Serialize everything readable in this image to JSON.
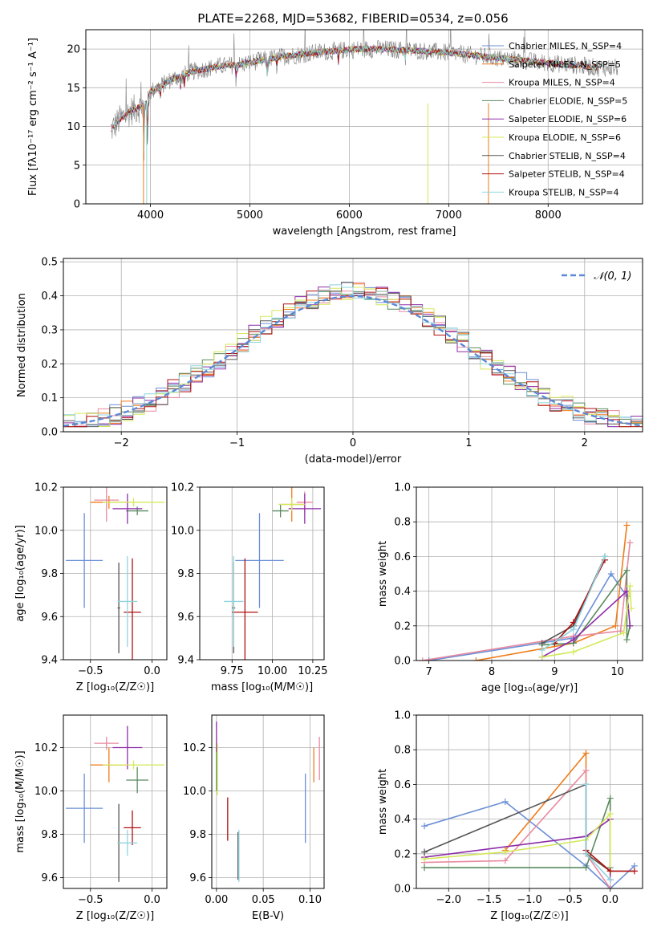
{
  "colors": {
    "chabrier_miles": "#6a8fd6",
    "salpeter_miles": "#f07c1b",
    "kroupa_miles": "#e88aa0",
    "chabrier_elodie": "#5a8a5f",
    "salpeter_elodie": "#8e2da8",
    "kroupa_elodie": "#d4e85a",
    "chabrier_stelib": "#555555",
    "salpeter_stelib": "#b01010",
    "kroupa_stelib": "#8fd4dd",
    "spectrum": "#808080",
    "normal": "#5b8ad6"
  },
  "chart_data": [
    {
      "type": "line",
      "title": "PLATE=2268, MJD=53682, FIBERID=0534, z=0.056",
      "xlabel": "wavelength [Angstrom, rest frame]",
      "ylabel": "Flux [fλ10⁻¹⁷ erg cm⁻² s⁻¹ A⁻¹]",
      "xlim": [
        3350,
        8950
      ],
      "ylim": [
        0,
        22.5
      ],
      "xticks": [
        4000,
        5000,
        6000,
        7000,
        8000
      ],
      "yticks": [
        0,
        5,
        10,
        15,
        20
      ],
      "legend_loc": "top-right",
      "legend": [
        "Chabrier MILES, N_SSP=4",
        "Salpeter MILES, N_SSP=5",
        "Kroupa MILES, N_SSP=4",
        "Chabrier ELODIE, N_SSP=5",
        "Salpeter ELODIE, N_SSP=6",
        "Kroupa ELODIE, N_SSP=6",
        "Chabrier STELIB, N_SSP=4",
        "Salpeter STELIB, N_SSP=4",
        "Kroupa STELIB, N_SSP=4"
      ],
      "continuum": {
        "x": [
          3600,
          3700,
          3800,
          3900,
          3950,
          4000,
          4100,
          4200,
          4300,
          4400,
          4500,
          4700,
          4900,
          5100,
          5300,
          5500,
          5700,
          5900,
          6100,
          6300,
          6500,
          6700,
          6900,
          7100,
          7300,
          7500,
          7700,
          7900,
          8100,
          8300,
          8500
        ],
        "y": [
          9.5,
          11,
          12,
          12.5,
          13,
          14.5,
          15.2,
          16,
          16.5,
          17,
          17.3,
          17.8,
          18,
          18.5,
          19,
          19.3,
          19.6,
          19.8,
          20,
          20,
          19.9,
          19.8,
          19.6,
          19.4,
          19.1,
          18.8,
          18.6,
          18.3,
          18.1,
          17.9,
          17.6
        ]
      }
    },
    {
      "type": "step",
      "xlabel": "(data-model)/error",
      "ylabel": "Normed distribution",
      "xlim": [
        -2.5,
        2.5
      ],
      "ylim": [
        0,
        0.51
      ],
      "xticks": [
        -2,
        -1,
        0,
        1,
        2
      ],
      "yticks": [
        0.0,
        0.1,
        0.2,
        0.3,
        0.4,
        0.5
      ],
      "legend": [
        "𝒩(0, 1)"
      ],
      "legend_loc": "top-right"
    },
    {
      "type": "errorbar",
      "xlabel": "Z [log₁₀(Z/Z☉)]",
      "ylabel": "age  [log₁₀(age/yr)]",
      "xlim": [
        -0.72,
        0.12
      ],
      "ylim": [
        9.4,
        10.2
      ],
      "xticks": [
        -0.5,
        0.0
      ],
      "yticks": [
        9.4,
        9.6,
        9.8,
        10.0,
        10.2
      ],
      "points": [
        {
          "model": "chabrier_miles",
          "x": -0.55,
          "xerr": 0.15,
          "y": 9.86,
          "yerr": 0.22
        },
        {
          "model": "salpeter_miles",
          "x": -0.35,
          "xerr": 0.15,
          "y": 10.13,
          "yerr": 0.03
        },
        {
          "model": "kroupa_miles",
          "x": -0.37,
          "xerr": 0.1,
          "y": 10.14,
          "yerr": 0.1
        },
        {
          "model": "chabrier_elodie",
          "x": -0.12,
          "xerr": 0.09,
          "y": 10.09,
          "yerr": 0.02
        },
        {
          "model": "salpeter_elodie",
          "x": -0.2,
          "xerr": 0.12,
          "y": 10.1,
          "yerr": 0.07
        },
        {
          "model": "kroupa_elodie",
          "x": -0.15,
          "xerr": 0.25,
          "y": 10.13,
          "yerr": 0.02
        },
        {
          "model": "chabrier_stelib",
          "x": -0.27,
          "xerr": 0.01,
          "y": 9.64,
          "yerr": 0.21
        },
        {
          "model": "salpeter_stelib",
          "x": -0.16,
          "xerr": 0.07,
          "y": 9.62,
          "yerr": 0.25
        },
        {
          "model": "kroupa_stelib",
          "x": -0.2,
          "xerr": 0.08,
          "y": 9.67,
          "yerr": 0.21
        }
      ]
    },
    {
      "type": "errorbar",
      "xlabel": "mass [log₁₀(M/M☉)]",
      "xlim": [
        9.55,
        10.32
      ],
      "ylim": [
        9.4,
        10.2
      ],
      "xticks": [
        9.75,
        10.0,
        10.25
      ],
      "yticks": [
        9.4,
        9.6,
        9.8,
        10.0,
        10.2
      ],
      "points": [
        {
          "model": "chabrier_miles",
          "x": 9.92,
          "xerr": 0.15,
          "y": 9.86,
          "yerr": 0.22
        },
        {
          "model": "salpeter_miles",
          "x": 10.12,
          "xerr": 0.08,
          "y": 10.12,
          "yerr": 0.08
        },
        {
          "model": "kroupa_miles",
          "x": 10.2,
          "xerr": 0.05,
          "y": 10.13,
          "yerr": 0.05
        },
        {
          "model": "chabrier_elodie",
          "x": 10.05,
          "xerr": 0.05,
          "y": 10.09,
          "yerr": 0.03
        },
        {
          "model": "salpeter_elodie",
          "x": 10.2,
          "xerr": 0.1,
          "y": 10.1,
          "yerr": 0.07
        },
        {
          "model": "kroupa_elodie",
          "x": 10.12,
          "xerr": 0.08,
          "y": 10.12,
          "yerr": 0.03
        },
        {
          "model": "chabrier_stelib",
          "x": 9.76,
          "xerr": 0.01,
          "y": 9.64,
          "yerr": 0.21
        },
        {
          "model": "salpeter_stelib",
          "x": 9.83,
          "xerr": 0.08,
          "y": 9.62,
          "yerr": 0.25
        },
        {
          "model": "kroupa_stelib",
          "x": 9.76,
          "xerr": 0.06,
          "y": 9.67,
          "yerr": 0.21
        }
      ]
    },
    {
      "type": "line",
      "xlabel": "age  [log₁₀(age/yr)]",
      "ylabel": "mass weight",
      "xlim": [
        6.8,
        10.4
      ],
      "ylim": [
        0,
        1
      ],
      "xticks": [
        7,
        8,
        9,
        10
      ],
      "yticks": [
        0.0,
        0.2,
        0.4,
        0.6,
        0.8,
        1.0
      ],
      "series": [
        {
          "model": "chabrier_miles",
          "x": [
            7.0,
            9.3,
            9.9,
            10.15
          ],
          "y": [
            0.0,
            0.13,
            0.5,
            0.37
          ]
        },
        {
          "model": "salpeter_miles",
          "x": [
            7.75,
            9.3,
            9.97,
            10.15
          ],
          "y": [
            0.0,
            0.1,
            0.2,
            0.78
          ]
        },
        {
          "model": "kroupa_miles",
          "x": [
            6.9,
            9.3,
            10.05,
            10.2
          ],
          "y": [
            0.0,
            0.14,
            0.17,
            0.68
          ]
        },
        {
          "model": "chabrier_elodie",
          "x": [
            8.8,
            9.3,
            10.15,
            10.15,
            10.2
          ],
          "y": [
            0.09,
            0.1,
            0.52,
            0.12,
            0.2
          ]
        },
        {
          "model": "salpeter_elodie",
          "x": [
            8.8,
            9.3,
            10.15,
            10.2
          ],
          "y": [
            0.02,
            0.12,
            0.4,
            0.2
          ]
        },
        {
          "model": "kroupa_elodie",
          "x": [
            8.8,
            9.3,
            10.1,
            10.2,
            10.22
          ],
          "y": [
            0.02,
            0.05,
            0.16,
            0.43,
            0.3
          ]
        },
        {
          "model": "chabrier_stelib",
          "x": [
            8.8,
            9.3,
            9.8
          ],
          "y": [
            0.1,
            0.2,
            0.6
          ]
        },
        {
          "model": "salpeter_stelib",
          "x": [
            9.0,
            9.3,
            9.8
          ],
          "y": [
            0.1,
            0.22,
            0.58
          ]
        },
        {
          "model": "kroupa_stelib",
          "x": [
            8.8,
            9.3,
            9.8
          ],
          "y": [
            0.06,
            0.18,
            0.6
          ]
        }
      ]
    },
    {
      "type": "errorbar",
      "xlabel": "Z [log₁₀(Z/Z☉)]",
      "ylabel": "mass [log₁₀(M/M☉)]",
      "xlim": [
        -0.72,
        0.12
      ],
      "ylim": [
        9.55,
        10.35
      ],
      "xticks": [
        -0.5,
        0.0
      ],
      "yticks": [
        9.6,
        9.8,
        10.0,
        10.2
      ],
      "points": [
        {
          "model": "chabrier_miles",
          "x": -0.55,
          "xerr": 0.15,
          "y": 9.92,
          "yerr": 0.16
        },
        {
          "model": "salpeter_miles",
          "x": -0.35,
          "xerr": 0.15,
          "y": 10.12,
          "yerr": 0.08
        },
        {
          "model": "kroupa_miles",
          "x": -0.37,
          "xerr": 0.1,
          "y": 10.22,
          "yerr": 0.03
        },
        {
          "model": "chabrier_elodie",
          "x": -0.12,
          "xerr": 0.09,
          "y": 10.05,
          "yerr": 0.06
        },
        {
          "model": "salpeter_elodie",
          "x": -0.2,
          "xerr": 0.12,
          "y": 10.2,
          "yerr": 0.1
        },
        {
          "model": "kroupa_elodie",
          "x": -0.15,
          "xerr": 0.25,
          "y": 10.12,
          "yerr": 0.02
        },
        {
          "model": "chabrier_stelib",
          "x": -0.27,
          "xerr": 0.01,
          "y": 9.76,
          "yerr": 0.18
        },
        {
          "model": "salpeter_stelib",
          "x": -0.16,
          "xerr": 0.07,
          "y": 9.83,
          "yerr": 0.08
        },
        {
          "model": "kroupa_stelib",
          "x": -0.2,
          "xerr": 0.08,
          "y": 9.76,
          "yerr": 0.06
        }
      ]
    },
    {
      "type": "errorbar",
      "xlabel": "E(B-V)",
      "xlim": [
        -0.005,
        0.115
      ],
      "ylim": [
        9.55,
        10.35
      ],
      "xticks": [
        0.0,
        0.05,
        0.1
      ],
      "yticks": [
        9.6,
        9.8,
        10.0,
        10.2
      ],
      "points": [
        {
          "model": "chabrier_miles",
          "x": 0.095,
          "y": 9.92,
          "yerr": 0.16
        },
        {
          "model": "salpeter_miles",
          "x": 0.104,
          "y": 10.12,
          "yerr": 0.08
        },
        {
          "model": "kroupa_miles",
          "x": 0.11,
          "y": 10.15,
          "yerr": 0.1
        },
        {
          "model": "chabrier_elodie",
          "x": 0.0,
          "y": 10.1,
          "yerr": 0.1
        },
        {
          "model": "salpeter_elodie",
          "x": 0.0,
          "y": 10.25,
          "yerr": 0.07
        },
        {
          "model": "kroupa_elodie",
          "x": 0.001,
          "y": 10.1,
          "yerr": 0.12
        },
        {
          "model": "chabrier_stelib",
          "x": 0.023,
          "y": 9.7,
          "yerr": 0.11
        },
        {
          "model": "salpeter_stelib",
          "x": 0.012,
          "y": 9.87,
          "yerr": 0.1
        },
        {
          "model": "kroupa_stelib",
          "x": 0.024,
          "y": 9.7,
          "yerr": 0.12
        }
      ]
    },
    {
      "type": "line",
      "xlabel": "Z [log₁₀(Z/Z☉)]",
      "ylabel": "mass weight",
      "xlim": [
        -2.4,
        0.4
      ],
      "ylim": [
        0,
        1
      ],
      "xticks": [
        -2.0,
        -1.5,
        -1.0,
        -0.5,
        0.0
      ],
      "yticks": [
        0.0,
        0.2,
        0.4,
        0.6,
        0.8,
        1.0
      ],
      "series": [
        {
          "model": "chabrier_miles",
          "x": [
            -2.3,
            -1.3,
            -0.3,
            0.0,
            0.3
          ],
          "y": [
            0.36,
            0.5,
            0.13,
            0.0,
            0.13
          ]
        },
        {
          "model": "salpeter_miles",
          "x": [
            -1.3,
            -0.3,
            -0.3,
            0.0
          ],
          "y": [
            0.22,
            0.78,
            0.2,
            0.1
          ]
        },
        {
          "model": "kroupa_miles",
          "x": [
            -2.3,
            -1.3,
            -0.3,
            -0.3,
            0.0
          ],
          "y": [
            0.15,
            0.16,
            0.68,
            0.2,
            0.0
          ]
        },
        {
          "model": "chabrier_elodie",
          "x": [
            -2.3,
            -0.3,
            0.0,
            0.0
          ],
          "y": [
            0.12,
            0.12,
            0.52,
            0.12
          ]
        },
        {
          "model": "salpeter_elodie",
          "x": [
            -2.3,
            -0.3,
            0.0,
            0.0
          ],
          "y": [
            0.18,
            0.3,
            0.4,
            0.05
          ]
        },
        {
          "model": "kroupa_elodie",
          "x": [
            -2.3,
            -1.3,
            -0.3,
            0.0,
            0.0
          ],
          "y": [
            0.17,
            0.21,
            0.28,
            0.43,
            0.1
          ]
        },
        {
          "model": "chabrier_stelib",
          "x": [
            -2.3,
            -0.3,
            -0.3,
            0.0
          ],
          "y": [
            0.21,
            0.6,
            0.2,
            0.1
          ]
        },
        {
          "model": "salpeter_stelib",
          "x": [
            -0.3,
            0.0,
            0.3
          ],
          "y": [
            0.22,
            0.1,
            0.1
          ]
        },
        {
          "model": "kroupa_stelib",
          "x": [
            -0.3,
            -0.3,
            0.0
          ],
          "y": [
            0.6,
            0.2,
            0.05
          ]
        }
      ]
    }
  ]
}
